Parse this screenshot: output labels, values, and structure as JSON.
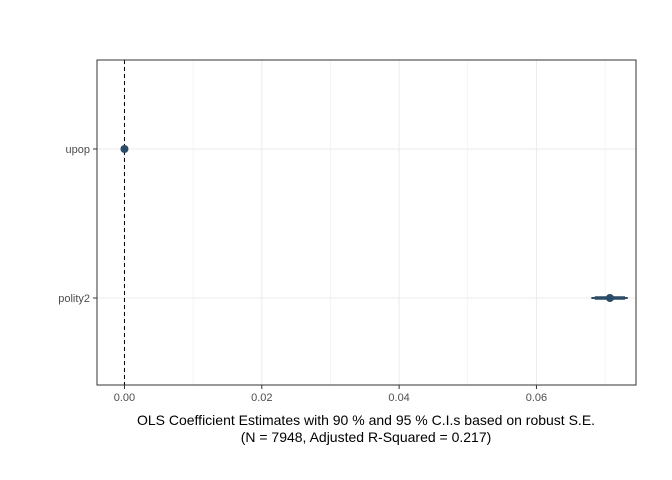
{
  "chart_data": {
    "type": "scatter",
    "subtype": "coefficient-plot",
    "title": "",
    "xlabel": "OLS Coefficient Estimates with 90 % and 95 % C.I.s based on robust S.E.",
    "xlabel_line2": "(N = 7948, Adjusted R-Squared = 0.217)",
    "ylabel": "",
    "xlim": [
      -0.004,
      0.0745
    ],
    "x_ticks": [
      0.0,
      0.02,
      0.04,
      0.06
    ],
    "x_tick_labels": [
      "0.00",
      "0.02",
      "0.04",
      "0.06"
    ],
    "categories": [
      "upop",
      "polity2"
    ],
    "points": [
      {
        "label": "upop",
        "estimate": 0.0,
        "ci90": [
          -0.0002,
          0.0002
        ],
        "ci95": [
          -0.0003,
          0.0003
        ]
      },
      {
        "label": "polity2",
        "estimate": 0.0707,
        "ci90": [
          0.0685,
          0.0729
        ],
        "ci95": [
          0.068,
          0.0733
        ]
      }
    ],
    "reference_line_x": 0,
    "grid": true,
    "legend": "none",
    "colors": {
      "point": "#2b4b66",
      "grid": "#ebebeb",
      "border": "#333333",
      "reference": "#000000"
    }
  }
}
